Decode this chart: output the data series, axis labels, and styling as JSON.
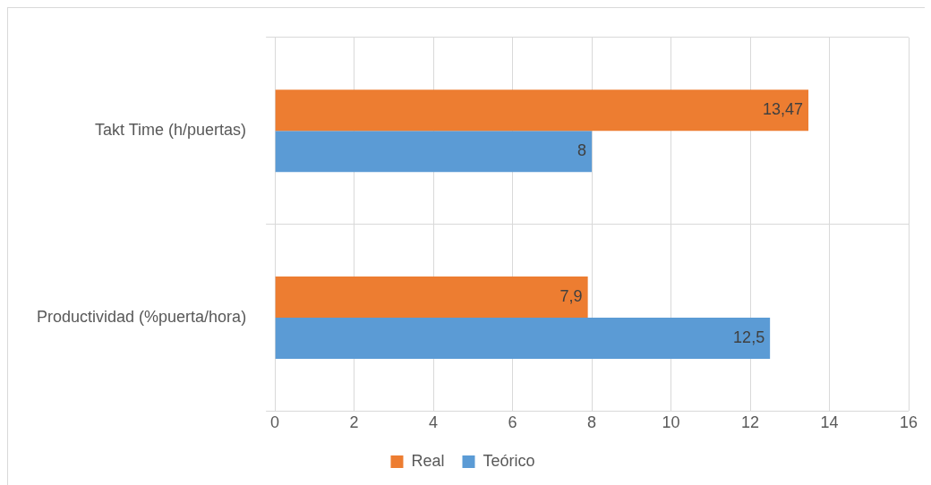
{
  "chart_data": {
    "type": "bar",
    "orientation": "horizontal",
    "categories": [
      "Takt Time (h/puertas)",
      "Productividad (%puerta/hora)"
    ],
    "series": [
      {
        "name": "Real",
        "color": "#ed7d31",
        "values": [
          13.47,
          7.9
        ],
        "value_labels": [
          "13,47",
          "7,9"
        ]
      },
      {
        "name": "Teórico",
        "color": "#5b9bd5",
        "values": [
          8,
          12.5
        ],
        "value_labels": [
          "8",
          "12,5"
        ]
      }
    ],
    "xlim": [
      0,
      16
    ],
    "xticks": [
      0,
      2,
      4,
      6,
      8,
      10,
      12,
      14,
      16
    ],
    "grid": true,
    "legend": "bottom"
  }
}
